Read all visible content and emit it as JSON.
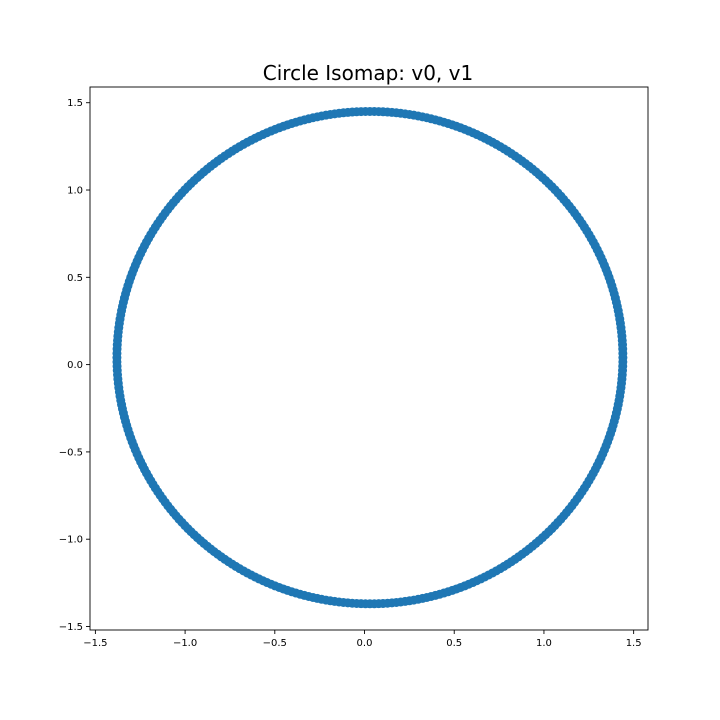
{
  "chart_data": {
    "type": "scatter",
    "title": "Circle Isomap: v0, v1",
    "xlabel": "",
    "ylabel": "",
    "xlim": [
      -1.53,
      1.58
    ],
    "ylim": [
      -1.52,
      1.59
    ],
    "xticks": [
      -1.5,
      -1.0,
      -0.5,
      0.0,
      0.5,
      1.0,
      1.5
    ],
    "xtick_labels": [
      "−1.5",
      "−1.0",
      "−0.5",
      "0.0",
      "0.5",
      "1.0",
      "1.5"
    ],
    "yticks": [
      -1.5,
      -1.0,
      -0.5,
      0.0,
      0.5,
      1.0,
      1.5
    ],
    "ytick_labels": [
      "−1.5",
      "−1.0",
      "−0.5",
      "0.0",
      "0.5",
      "1.0",
      "1.5"
    ],
    "grid": false,
    "legend": "none",
    "color": "#1f77b4",
    "series": [
      {
        "shape": "circle",
        "center": [
          0.03,
          0.04
        ],
        "radius_x": 1.41,
        "radius_y": 1.41,
        "point_count": 360
      }
    ]
  }
}
